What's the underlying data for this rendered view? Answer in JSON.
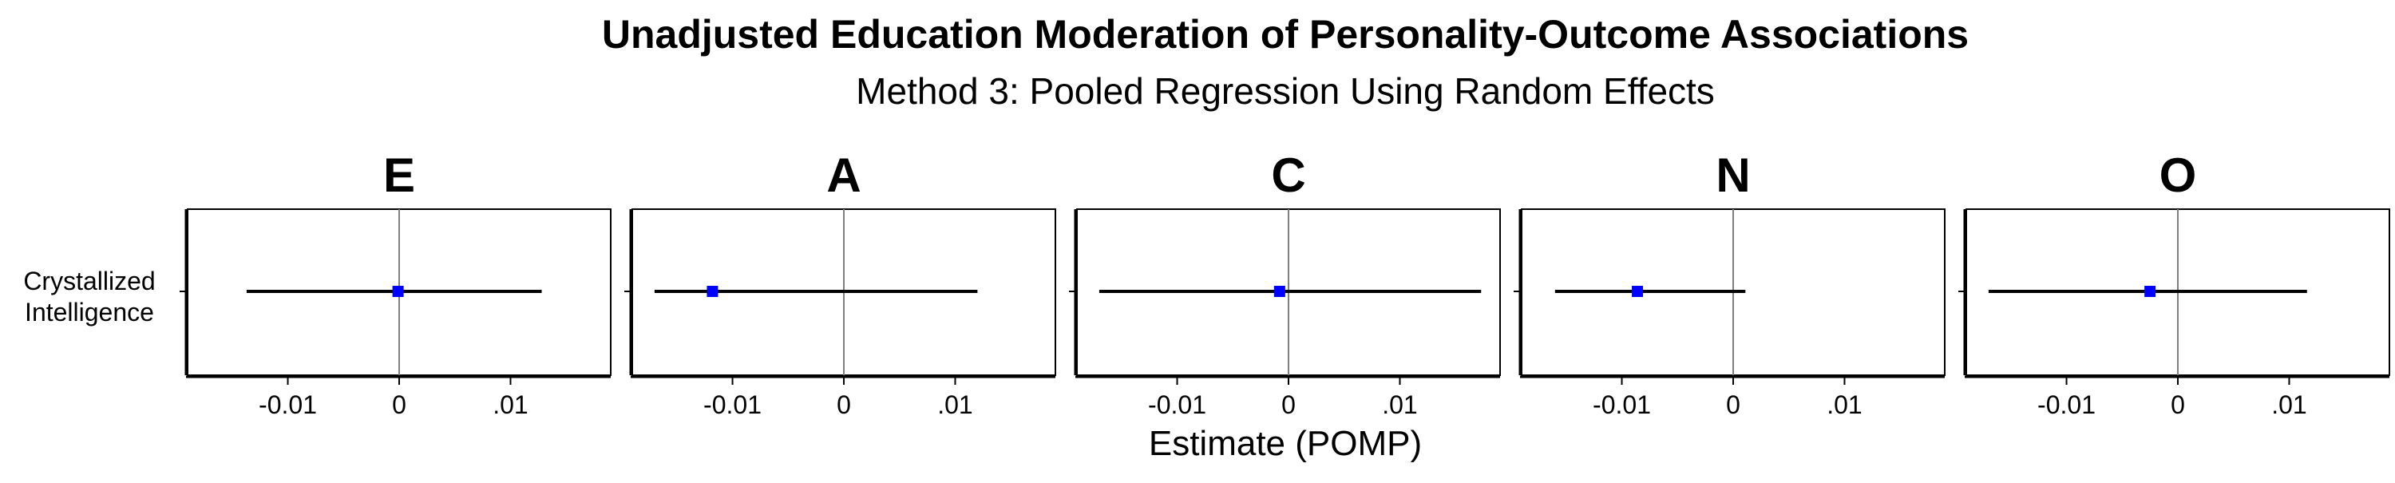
{
  "chart_data": {
    "type": "forest",
    "title": "Unadjusted Education Moderation of Personality-Outcome Associations",
    "subtitle": "Method 3: Pooled Regression Using Random Effects",
    "xlabel": "Estimate (POMP)",
    "row_labels": [
      "Crystallized",
      "Intelligence"
    ],
    "xlim": [
      -0.019,
      0.019
    ],
    "x_ticks": [
      {
        "value": -0.01,
        "label": "-0.01"
      },
      {
        "value": 0,
        "label": "0"
      },
      {
        "value": 0.01,
        "label": ".01"
      }
    ],
    "reference_line": 0,
    "point_color": "#0000ff",
    "grid": false,
    "panels": [
      {
        "name": "E",
        "estimate": -0.0001,
        "ci_low": -0.0137,
        "ci_high": 0.0128
      },
      {
        "name": "A",
        "estimate": -0.0118,
        "ci_low": -0.017,
        "ci_high": 0.012
      },
      {
        "name": "C",
        "estimate": -0.0008,
        "ci_low": -0.017,
        "ci_high": 0.0173
      },
      {
        "name": "N",
        "estimate": -0.0086,
        "ci_low": -0.016,
        "ci_high": 0.0011
      },
      {
        "name": "O",
        "estimate": -0.0025,
        "ci_low": -0.017,
        "ci_high": 0.0116
      }
    ]
  }
}
